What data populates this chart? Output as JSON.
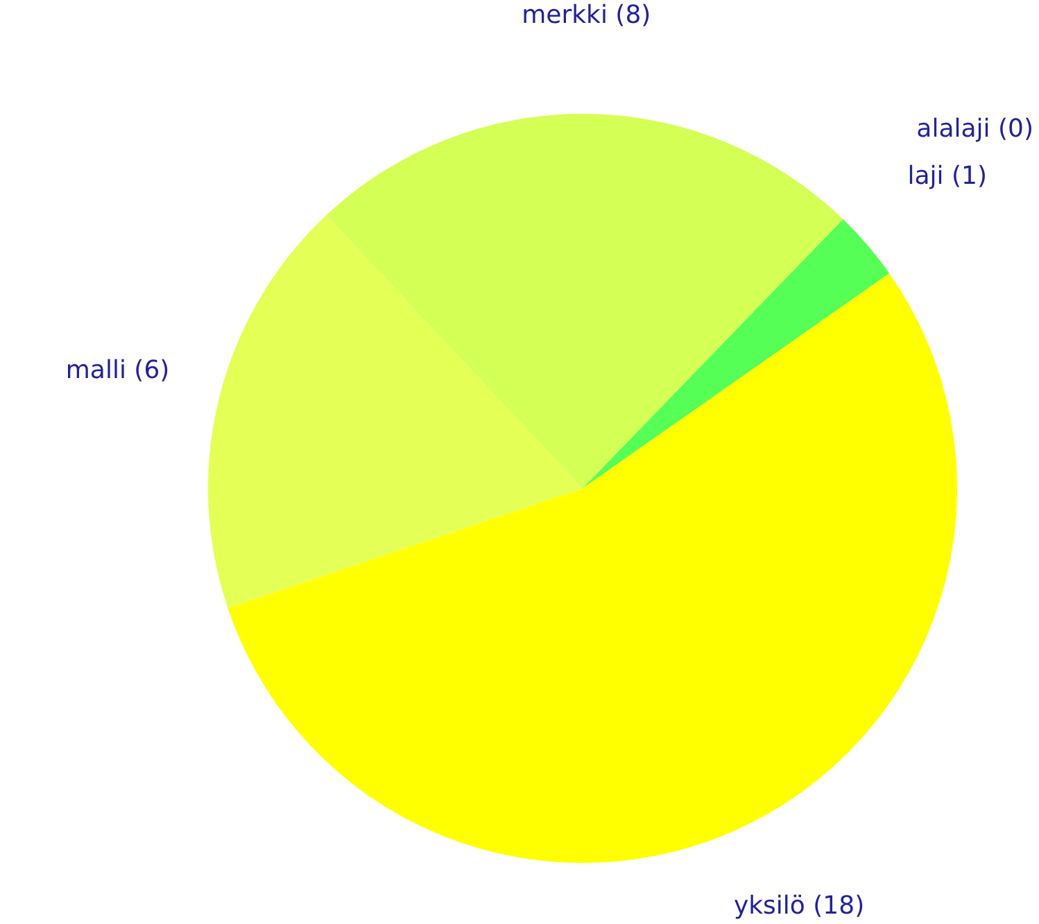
{
  "chart_data": {
    "type": "pie",
    "categories": [
      "merkki (8)",
      "laji (1)",
      "alalaji (0)",
      "yksilö (18)",
      "malli (6)"
    ],
    "values": [
      8,
      1,
      0,
      18,
      6
    ],
    "colors": [
      "#d4ff55",
      "#55ff55",
      "#aaff55",
      "#ffff00",
      "#e4ff55"
    ]
  }
}
